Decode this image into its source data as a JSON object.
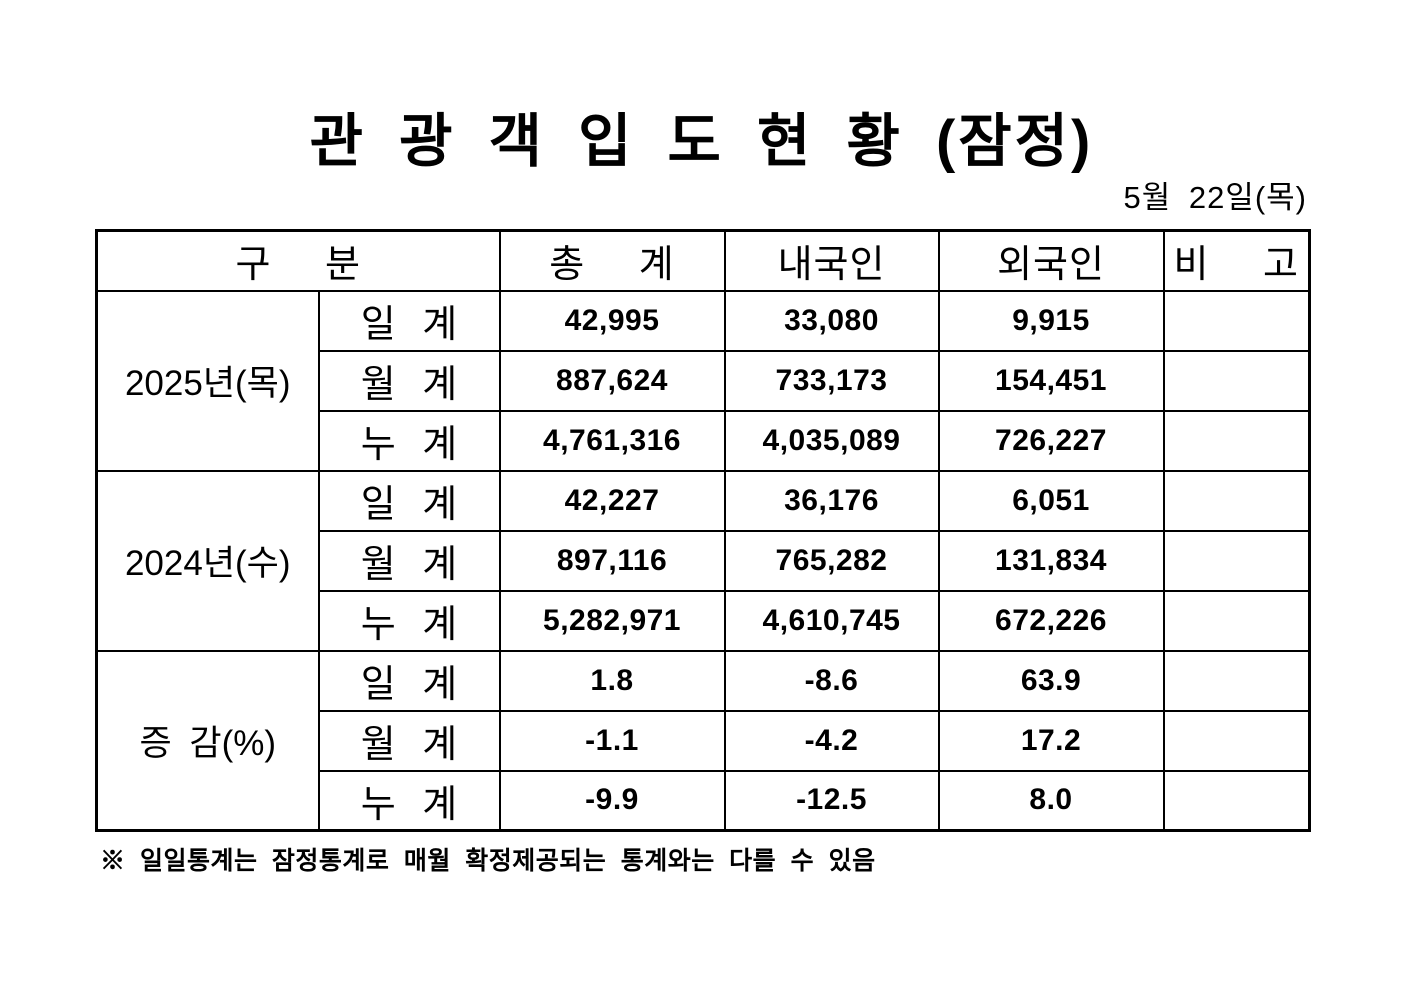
{
  "title": "관 광 객 입 도 현 황 (잠정)",
  "date": "5월 22일(목)",
  "table": {
    "headers": {
      "gubun": "구 분",
      "total": "총 계",
      "domestic": "내국인",
      "foreign": "외국인",
      "remark": "비 고"
    },
    "sections": [
      {
        "label": "2025년(목)",
        "rows": [
          {
            "label": "일 계",
            "total": "42,995",
            "domestic": "33,080",
            "foreign": "9,915",
            "remark": ""
          },
          {
            "label": "월 계",
            "total": "887,624",
            "domestic": "733,173",
            "foreign": "154,451",
            "remark": ""
          },
          {
            "label": "누 계",
            "total": "4,761,316",
            "domestic": "4,035,089",
            "foreign": "726,227",
            "remark": ""
          }
        ]
      },
      {
        "label": "2024년(수)",
        "rows": [
          {
            "label": "일 계",
            "total": "42,227",
            "domestic": "36,176",
            "foreign": "6,051",
            "remark": ""
          },
          {
            "label": "월 계",
            "total": "897,116",
            "domestic": "765,282",
            "foreign": "131,834",
            "remark": ""
          },
          {
            "label": "누 계",
            "total": "5,282,971",
            "domestic": "4,610,745",
            "foreign": "672,226",
            "remark": ""
          }
        ]
      },
      {
        "label": "증 감(%)",
        "rows": [
          {
            "label": "일 계",
            "total": "1.8",
            "domestic": "-8.6",
            "foreign": "63.9",
            "remark": ""
          },
          {
            "label": "월 계",
            "total": "-1.1",
            "domestic": "-4.2",
            "foreign": "17.2",
            "remark": ""
          },
          {
            "label": "누 계",
            "total": "-9.9",
            "domestic": "-12.5",
            "foreign": "8.0",
            "remark": ""
          }
        ]
      }
    ]
  },
  "footnote": "※ 일일통계는 잠정통계로 매월 확정제공되는 통계와는 다를 수 있음"
}
